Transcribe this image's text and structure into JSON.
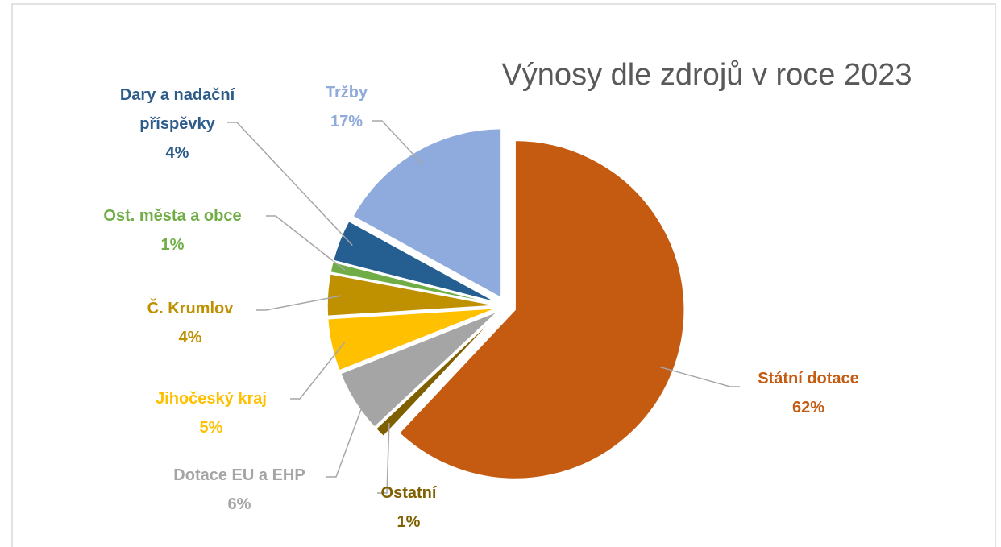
{
  "chart_data": {
    "type": "pie",
    "title": "Výnosy dle zdrojů v roce 2023",
    "categories": [
      "Státní dotace",
      "Ostatní",
      "Dotace EU a EHP",
      "Jihočeský kraj",
      "Č. Krumlov",
      "Ost. města a obce",
      "Dary a nadační příspěvky",
      "Tržby"
    ],
    "values": [
      62,
      1,
      6,
      5,
      4,
      1,
      4,
      17
    ],
    "value_labels": [
      "62%",
      "1%",
      "6%",
      "5%",
      "4%",
      "1%",
      "4%",
      "17%"
    ],
    "colors": [
      "#c55a11",
      "#7f6000",
      "#a5a5a5",
      "#ffc000",
      "#bf9000",
      "#70ad47",
      "#255e91",
      "#8faadc"
    ],
    "exploded": true
  }
}
